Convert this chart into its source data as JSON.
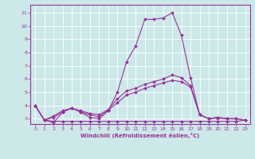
{
  "xlabel": "Windchill (Refroidissement éolien,°C)",
  "background_color": "#cce8e8",
  "line_color": "#993399",
  "xlim": [
    -0.5,
    23.5
  ],
  "ylim": [
    2.6,
    11.6
  ],
  "xticks": [
    0,
    1,
    2,
    3,
    4,
    5,
    6,
    7,
    8,
    9,
    10,
    11,
    12,
    13,
    14,
    15,
    16,
    17,
    18,
    19,
    20,
    21,
    22,
    23
  ],
  "yticks": [
    3,
    4,
    5,
    6,
    7,
    8,
    9,
    10,
    11
  ],
  "lines": [
    {
      "x": [
        0,
        1,
        2,
        3,
        4,
        5,
        6,
        7,
        8,
        9,
        10,
        11,
        12,
        13,
        14,
        15,
        16,
        17,
        18,
        19,
        20,
        21,
        22
      ],
      "y": [
        4.0,
        2.9,
        2.7,
        3.5,
        3.8,
        3.5,
        3.1,
        3.0,
        3.6,
        5.0,
        7.3,
        8.5,
        10.5,
        10.5,
        10.6,
        11.0,
        9.3,
        6.1,
        3.3,
        3.0,
        3.1,
        3.0,
        3.0
      ]
    },
    {
      "x": [
        0,
        1,
        2,
        3,
        4,
        5,
        6,
        7,
        8,
        9,
        10,
        11,
        12,
        13,
        14,
        15,
        16,
        17,
        18,
        19,
        20,
        21,
        22,
        23
      ],
      "y": [
        4.0,
        2.9,
        2.8,
        2.8,
        2.8,
        2.8,
        2.8,
        2.8,
        2.8,
        2.8,
        2.8,
        2.8,
        2.8,
        2.8,
        2.8,
        2.8,
        2.8,
        2.8,
        2.8,
        2.8,
        2.8,
        2.8,
        2.8,
        2.9
      ]
    },
    {
      "x": [
        0,
        1,
        2,
        3,
        4,
        5,
        6,
        7,
        8,
        9,
        10,
        11,
        12,
        13,
        14,
        15,
        16,
        17,
        18,
        19,
        20,
        21,
        22,
        23
      ],
      "y": [
        4.0,
        2.9,
        3.2,
        3.6,
        3.8,
        3.6,
        3.4,
        3.3,
        3.7,
        4.5,
        5.1,
        5.3,
        5.6,
        5.8,
        6.0,
        6.3,
        6.1,
        5.5,
        3.3,
        3.0,
        3.1,
        3.0,
        3.0,
        2.9
      ]
    },
    {
      "x": [
        0,
        1,
        2,
        3,
        4,
        5,
        6,
        7,
        8,
        9,
        10,
        11,
        12,
        13,
        14,
        15,
        16,
        17,
        18,
        19,
        20,
        21,
        22,
        23
      ],
      "y": [
        4.0,
        2.9,
        3.1,
        3.5,
        3.8,
        3.5,
        3.3,
        3.15,
        3.65,
        4.2,
        4.8,
        5.0,
        5.3,
        5.5,
        5.7,
        5.9,
        5.8,
        5.4,
        3.3,
        3.0,
        3.05,
        3.0,
        3.0,
        2.9
      ]
    }
  ]
}
